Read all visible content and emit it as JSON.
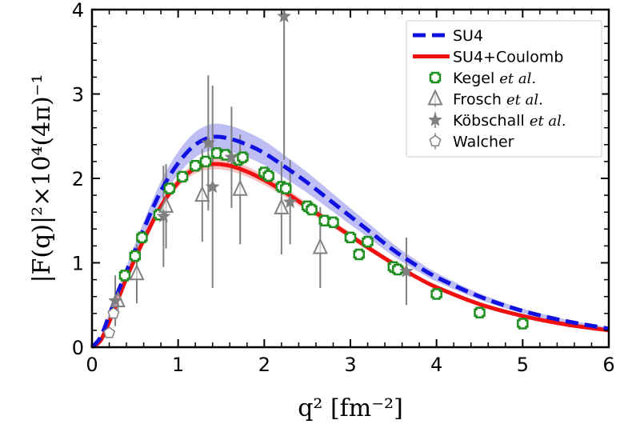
{
  "chart_data": {
    "type": "scatter",
    "title": "",
    "xlabel": "q² [fm⁻²]",
    "ylabel": "|F(q)|²×10⁴(4π)⁻¹",
    "xlim": [
      0,
      6
    ],
    "ylim": [
      0,
      4
    ],
    "xticks": [
      "0",
      "1",
      "2",
      "3",
      "4",
      "5",
      "6"
    ],
    "yticks": [
      "0",
      "1",
      "2",
      "3",
      "4"
    ],
    "grid": false,
    "legend_position": "top-right",
    "colors": {
      "su4": "#1010e0",
      "su4c": "#f01010",
      "su4_band": "#a8a8f0",
      "su4c_band": "#f5a8a8",
      "kegel": "#1f8f1f",
      "gray": "#808080"
    },
    "series": [
      {
        "name": "SU4",
        "kind": "line-dashed",
        "color": "#1010e0",
        "x": [
          0,
          0.1,
          0.2,
          0.3,
          0.4,
          0.5,
          0.6,
          0.8,
          1.0,
          1.2,
          1.4,
          1.6,
          1.8,
          2.0,
          2.25,
          2.5,
          2.75,
          3.0,
          3.25,
          3.5,
          3.75,
          4.0,
          4.5,
          5.0,
          5.5,
          6.0
        ],
        "y": [
          0,
          0.12,
          0.38,
          0.65,
          0.9,
          1.15,
          1.4,
          1.85,
          2.18,
          2.4,
          2.49,
          2.47,
          2.4,
          2.3,
          2.13,
          1.95,
          1.75,
          1.55,
          1.35,
          1.15,
          0.98,
          0.83,
          0.6,
          0.43,
          0.31,
          0.22
        ],
        "band": 0.15
      },
      {
        "name": "SU4+Coulomb",
        "kind": "line-solid",
        "color": "#f01010",
        "x": [
          0,
          0.1,
          0.2,
          0.3,
          0.4,
          0.5,
          0.6,
          0.8,
          1.0,
          1.2,
          1.4,
          1.6,
          1.8,
          2.0,
          2.25,
          2.5,
          2.75,
          3.0,
          3.25,
          3.5,
          3.75,
          4.0,
          4.5,
          5.0,
          5.5,
          6.0
        ],
        "y": [
          0,
          0.08,
          0.3,
          0.56,
          0.82,
          1.05,
          1.27,
          1.67,
          1.95,
          2.12,
          2.17,
          2.15,
          2.08,
          1.98,
          1.83,
          1.66,
          1.49,
          1.32,
          1.15,
          0.99,
          0.84,
          0.71,
          0.51,
          0.37,
          0.27,
          0.2
        ],
        "band": 0.07
      },
      {
        "name": "Kegel et al.",
        "kind": "scatter",
        "marker": "cross",
        "x": [
          0.38,
          0.5,
          0.58,
          0.78,
          0.9,
          1.05,
          1.2,
          1.32,
          1.45,
          1.55,
          1.7,
          1.75,
          2.0,
          2.05,
          2.2,
          2.25,
          2.5,
          2.55,
          2.7,
          2.8,
          3.0,
          3.1,
          3.2,
          3.5,
          3.55,
          4.0,
          4.5,
          5.0
        ],
        "y": [
          0.85,
          1.08,
          1.3,
          1.57,
          1.88,
          2.02,
          2.15,
          2.2,
          2.3,
          2.28,
          2.22,
          2.25,
          2.07,
          2.03,
          1.9,
          1.88,
          1.67,
          1.63,
          1.5,
          1.48,
          1.3,
          1.1,
          1.25,
          0.95,
          0.92,
          0.63,
          0.41,
          0.28
        ]
      },
      {
        "name": "Frosch et al.",
        "kind": "scatter",
        "marker": "triangle",
        "x": [
          0.3,
          0.52,
          0.86,
          1.28,
          1.72,
          2.2,
          2.65
        ],
        "y": [
          0.55,
          0.87,
          1.67,
          1.8,
          1.87,
          1.65,
          1.18
        ],
        "err": [
          0.15,
          0.35,
          0.5,
          0.55,
          0.65,
          0.55,
          0.48
        ]
      },
      {
        "name": "Köbschall et al.",
        "kind": "scatter",
        "marker": "star",
        "x": [
          0.27,
          0.83,
          1.35,
          1.4,
          1.62,
          2.23,
          2.3,
          3.65
        ],
        "y": [
          0.55,
          1.55,
          2.42,
          1.9,
          2.25,
          3.92,
          1.72,
          0.9
        ],
        "err": [
          0.3,
          0.6,
          0.8,
          1.2,
          0.6,
          1.7,
          0.5,
          0.4
        ]
      },
      {
        "name": "Walcher",
        "kind": "scatter",
        "marker": "pentagon",
        "x": [
          0.2,
          0.25
        ],
        "y": [
          0.17,
          0.4
        ],
        "err": [
          0.05,
          0.06
        ]
      }
    ]
  },
  "legend": {
    "items": [
      {
        "label": "SU4",
        "suffix": ""
      },
      {
        "label": "SU4+Coulomb",
        "suffix": ""
      },
      {
        "label": "Kegel ",
        "suffix": "et al."
      },
      {
        "label": "Frosch ",
        "suffix": "et al."
      },
      {
        "label": "Köbschall ",
        "suffix": "et al."
      },
      {
        "label": "Walcher",
        "suffix": ""
      }
    ]
  }
}
